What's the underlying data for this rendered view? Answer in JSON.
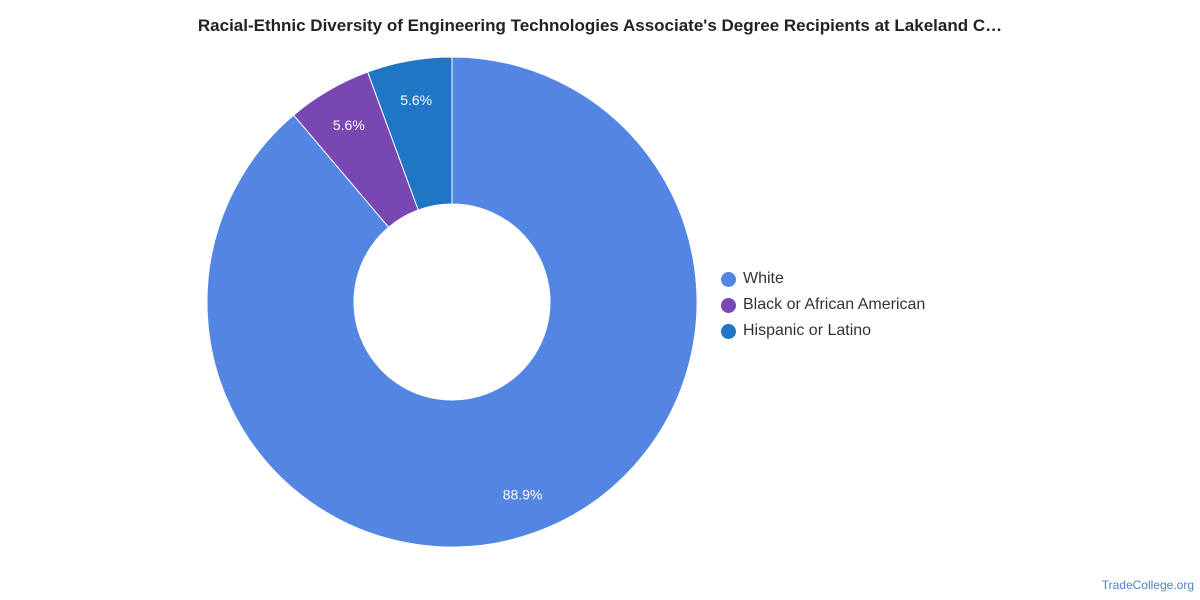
{
  "page": {
    "title": "Racial-Ethnic Diversity of Engineering Technologies Associate's Degree Recipients at Lakeland C…",
    "watermark": "TradeCollege.org"
  },
  "chart_data": {
    "type": "pie",
    "donut": true,
    "title": "Racial-Ethnic Diversity of Engineering Technologies Associate's Degree Recipients at Lakeland C…",
    "legend_position": "right",
    "slices": [
      {
        "name": "White",
        "value": 88.9,
        "label": "88.9%",
        "color": "#5286e2"
      },
      {
        "name": "Black or African American",
        "value": 5.6,
        "label": "5.6%",
        "color": "#7847b2"
      },
      {
        "name": "Hispanic or Latino",
        "value": 5.6,
        "label": "5.6%",
        "color": "#1f76c4"
      }
    ]
  }
}
